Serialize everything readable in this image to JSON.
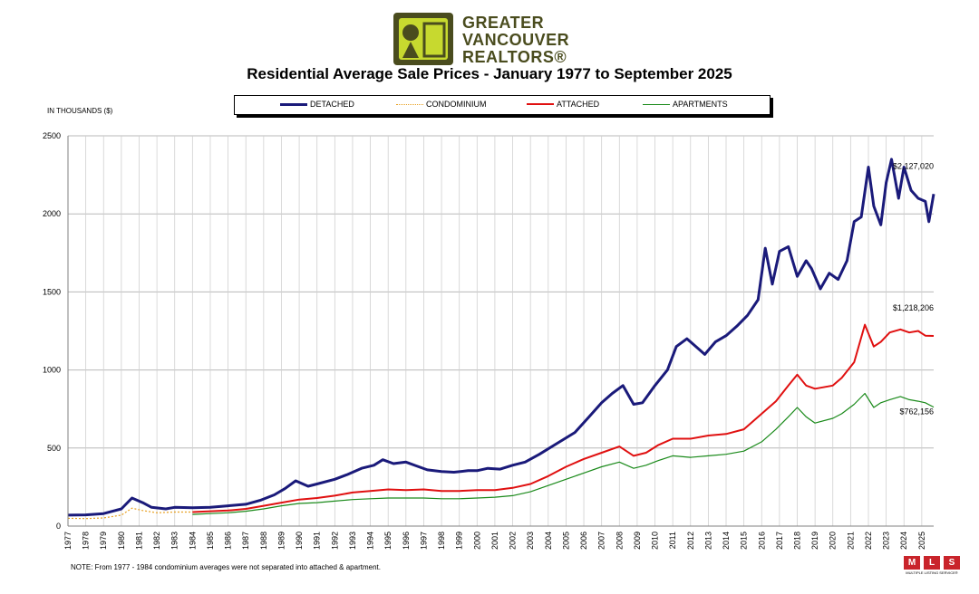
{
  "logo": {
    "line1": "GREATER",
    "line2": "VANCOUVER",
    "line3": "REALTORS®"
  },
  "chart_data": {
    "type": "line",
    "title": "Residential Average Sale Prices  -  January 1977 to September 2025",
    "ylabel": "IN THOUSANDS ($)",
    "xlabel": "",
    "ylim": [
      0,
      2500
    ],
    "xlim": [
      1977.0,
      2025.67
    ],
    "y_ticks": [
      0,
      500,
      1000,
      1500,
      2000,
      2500
    ],
    "x_ticks": [
      "1977",
      "1978",
      "1979",
      "1980",
      "1981",
      "1982",
      "1983",
      "1984",
      "1985",
      "1986",
      "1987",
      "1988",
      "1989",
      "1990",
      "1991",
      "1992",
      "1993",
      "1994",
      "1995",
      "1996",
      "1997",
      "1998",
      "1999",
      "2000",
      "2001",
      "2002",
      "2003",
      "2004",
      "2005",
      "2006",
      "2007",
      "2008",
      "2009",
      "2010",
      "2011",
      "2012",
      "2013",
      "2014",
      "2015",
      "2016",
      "2017",
      "2018",
      "2019",
      "2020",
      "2021",
      "2022",
      "2023",
      "2024",
      "2025"
    ],
    "grid": true,
    "legend_position": "top",
    "series": [
      {
        "name": "DETACHED",
        "color": "#1a1a7a",
        "style": "solid-thick",
        "x": [
          1977,
          1978,
          1979,
          1980,
          1980.6,
          1981.2,
          1981.7,
          1982.5,
          1983,
          1984,
          1985,
          1986,
          1987,
          1987.8,
          1988.6,
          1989.2,
          1989.8,
          1990.5,
          1991,
          1992,
          1992.7,
          1993.5,
          1994.2,
          1994.7,
          1995.3,
          1996,
          1996.6,
          1997.2,
          1998,
          1998.7,
          1999.5,
          2000,
          2000.6,
          2001.3,
          2002,
          2002.7,
          2003.5,
          2004.5,
          2005.5,
          2006.3,
          2007,
          2007.6,
          2008.2,
          2008.8,
          2009.3,
          2010,
          2010.7,
          2011.2,
          2011.8,
          2012.3,
          2012.8,
          2013.4,
          2014,
          2014.6,
          2015.2,
          2015.8,
          2016.2,
          2016.6,
          2017,
          2017.5,
          2018,
          2018.5,
          2018.8,
          2019.3,
          2019.8,
          2020.3,
          2020.8,
          2021.2,
          2021.6,
          2022,
          2022.3,
          2022.7,
          2023,
          2023.3,
          2023.7,
          2024,
          2024.4,
          2024.8,
          2025.2,
          2025.4,
          2025.67
        ],
        "y": [
          70,
          72,
          80,
          110,
          180,
          150,
          120,
          110,
          120,
          118,
          120,
          130,
          140,
          165,
          200,
          240,
          290,
          255,
          270,
          300,
          330,
          370,
          390,
          425,
          400,
          410,
          385,
          360,
          350,
          345,
          355,
          355,
          370,
          365,
          390,
          410,
          460,
          530,
          600,
          700,
          790,
          850,
          900,
          780,
          790,
          900,
          1000,
          1150,
          1200,
          1150,
          1100,
          1180,
          1220,
          1280,
          1350,
          1450,
          1780,
          1550,
          1760,
          1790,
          1600,
          1700,
          1650,
          1520,
          1620,
          1580,
          1700,
          1950,
          1980,
          2300,
          2050,
          1930,
          2200,
          2350,
          2100,
          2300,
          2150,
          2100,
          2080,
          1950,
          2127
        ]
      },
      {
        "name": "CONDOMINIUM",
        "color": "#e8a020",
        "style": "dotted",
        "x": [
          1977,
          1978,
          1979,
          1980,
          1980.6,
          1981.2,
          1982,
          1983,
          1984
        ],
        "y": [
          50,
          48,
          52,
          70,
          115,
          100,
          85,
          90,
          90
        ]
      },
      {
        "name": "ATTACHED",
        "color": "#e01010",
        "style": "solid",
        "x": [
          1984,
          1985,
          1986,
          1987,
          1988,
          1989,
          1990,
          1991,
          1992,
          1993,
          1994,
          1995,
          1996,
          1997,
          1998,
          1999,
          2000,
          2001,
          2002,
          2003,
          2004,
          2005,
          2006,
          2007,
          2008,
          2008.8,
          2009.5,
          2010.2,
          2011,
          2012,
          2013,
          2014,
          2015,
          2016,
          2016.8,
          2017.5,
          2018,
          2018.5,
          2019,
          2020,
          2020.5,
          2021.2,
          2021.8,
          2022.3,
          2022.7,
          2023.2,
          2023.8,
          2024.3,
          2024.8,
          2025.2,
          2025.67
        ],
        "y": [
          90,
          95,
          100,
          110,
          130,
          150,
          170,
          180,
          195,
          215,
          225,
          235,
          230,
          235,
          225,
          225,
          230,
          230,
          245,
          270,
          320,
          380,
          430,
          470,
          510,
          450,
          470,
          520,
          560,
          560,
          580,
          590,
          620,
          720,
          800,
          900,
          970,
          900,
          880,
          900,
          950,
          1050,
          1290,
          1150,
          1180,
          1240,
          1260,
          1240,
          1250,
          1220,
          1218
        ]
      },
      {
        "name": "APARTMENTS",
        "color": "#1a8a1a",
        "style": "solid-thin",
        "x": [
          1984,
          1985,
          1986,
          1987,
          1988,
          1989,
          1990,
          1991,
          1992,
          1993,
          1994,
          1995,
          1996,
          1997,
          1998,
          1999,
          2000,
          2001,
          2002,
          2003,
          2004,
          2005,
          2006,
          2007,
          2008,
          2008.8,
          2009.5,
          2010.2,
          2011,
          2012,
          2013,
          2014,
          2015,
          2016,
          2016.8,
          2017.5,
          2018,
          2018.5,
          2019,
          2020,
          2020.5,
          2021.2,
          2021.8,
          2022.3,
          2022.7,
          2023.2,
          2023.8,
          2024.3,
          2024.8,
          2025.2,
          2025.67
        ],
        "y": [
          75,
          80,
          85,
          95,
          110,
          130,
          145,
          150,
          160,
          170,
          175,
          180,
          180,
          180,
          175,
          175,
          180,
          185,
          195,
          220,
          260,
          300,
          340,
          380,
          410,
          370,
          390,
          420,
          450,
          440,
          450,
          460,
          480,
          540,
          620,
          700,
          760,
          700,
          660,
          690,
          720,
          780,
          850,
          760,
          790,
          810,
          830,
          810,
          800,
          790,
          762
        ]
      }
    ],
    "annotations": [
      "$2,127,020",
      "$1,218,206",
      "$762,156"
    ]
  },
  "note": "NOTE:  From 1977 - 1984 condominium averages were not separated into attached & apartment.",
  "mls": {
    "letters": [
      "M",
      "L",
      "S"
    ],
    "caption": "MULTIPLE LISTING SERVICE®"
  }
}
